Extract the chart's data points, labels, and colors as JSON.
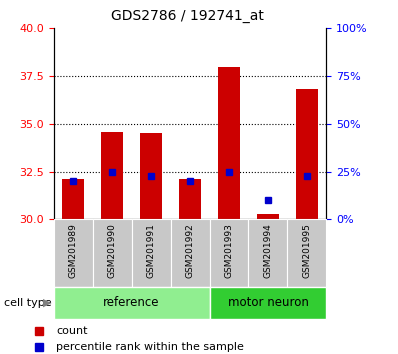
{
  "title": "GDS2786 / 192741_at",
  "samples": [
    "GSM201989",
    "GSM201990",
    "GSM201991",
    "GSM201992",
    "GSM201993",
    "GSM201994",
    "GSM201995"
  ],
  "groups": [
    {
      "name": "reference",
      "indices": [
        0,
        1,
        2,
        3
      ],
      "color": "#90EE90"
    },
    {
      "name": "motor neuron",
      "indices": [
        4,
        5,
        6
      ],
      "color": "#32CD32"
    }
  ],
  "count_values": [
    32.1,
    34.6,
    34.5,
    32.1,
    38.0,
    30.3,
    36.8
  ],
  "percentile_values": [
    20,
    25,
    23,
    20,
    25,
    10,
    23
  ],
  "count_baseline": 30.0,
  "left_ylim": [
    30,
    40
  ],
  "left_yticks": [
    30,
    32.5,
    35,
    37.5,
    40
  ],
  "right_ylim": [
    0,
    100
  ],
  "right_yticks": [
    0,
    25,
    50,
    75,
    100
  ],
  "right_yticklabels": [
    "0%",
    "25%",
    "50%",
    "75%",
    "100%"
  ],
  "bar_color": "#CC0000",
  "percentile_color": "#0000CC",
  "cell_type_label": "cell type",
  "legend_items": [
    "count",
    "percentile rank within the sample"
  ],
  "grid_yticks": [
    32.5,
    35,
    37.5
  ]
}
